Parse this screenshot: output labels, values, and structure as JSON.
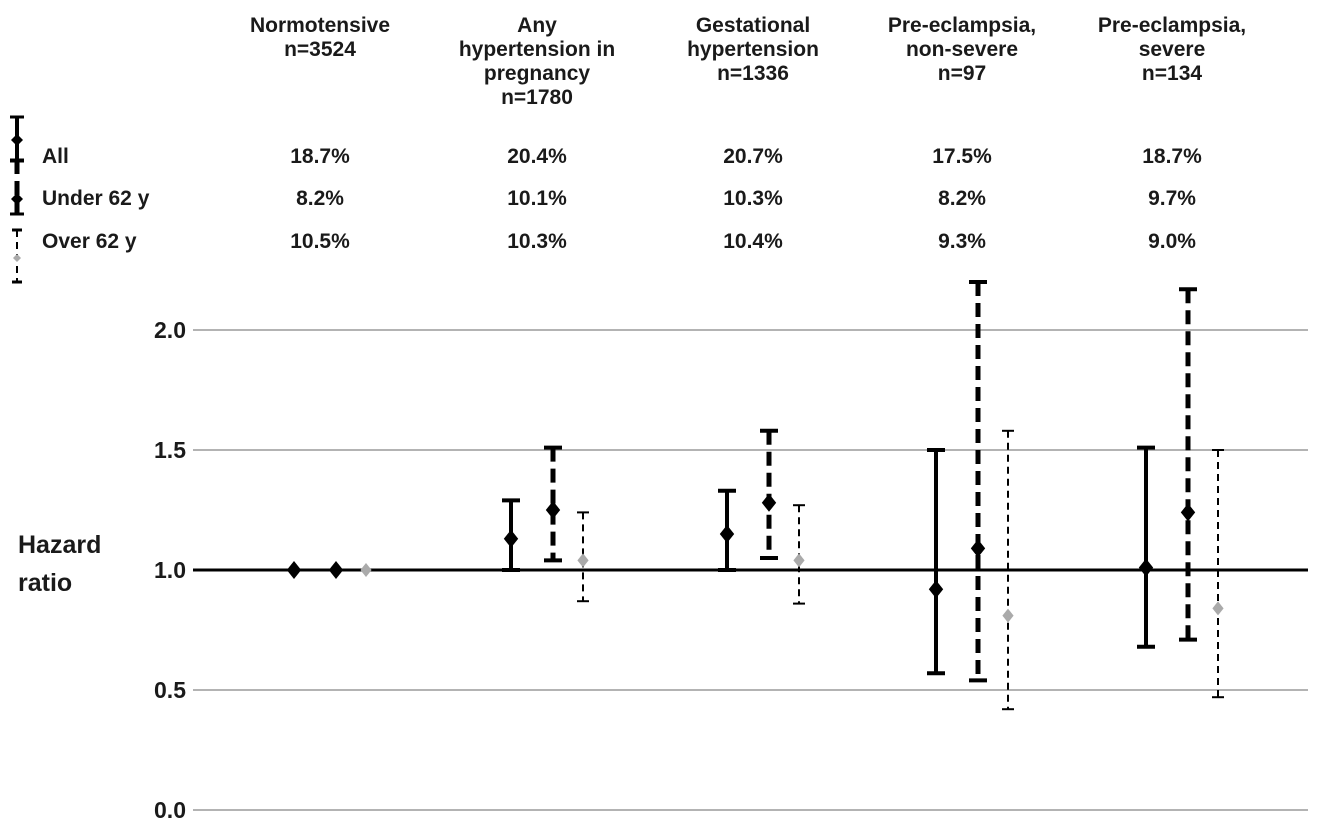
{
  "chart_data": {
    "type": "scatter",
    "title": "",
    "ylabel": [
      "Hazard",
      "ratio"
    ],
    "ylim": [
      0.0,
      2.0
    ],
    "yticks": [
      "0.0",
      "0.5",
      "1.0",
      "1.5",
      "2.0"
    ],
    "reference_line": 1.0,
    "grid": true,
    "legend_placement": "top-left",
    "groups": [
      {
        "label": [
          "Normotensive",
          "n=3524"
        ],
        "pct": [
          "18.7%",
          "8.2%",
          "10.5%"
        ]
      },
      {
        "label": [
          "Any",
          "hypertension in",
          "pregnancy",
          "n=1780"
        ],
        "pct": [
          "20.4%",
          "10.1%",
          "10.3%"
        ]
      },
      {
        "label": [
          "Gestational",
          "hypertension",
          "n=1336"
        ],
        "pct": [
          "20.7%",
          "10.3%",
          "10.4%"
        ]
      },
      {
        "label": [
          "Pre-eclampsia,",
          "non-severe",
          "n=97"
        ],
        "pct": [
          "17.5%",
          "8.2%",
          "9.3%"
        ]
      },
      {
        "label": [
          "Pre-eclampsia,",
          "severe",
          "n=134"
        ],
        "pct": [
          "18.7%",
          "9.7%",
          "9.0%"
        ]
      }
    ],
    "series": [
      {
        "name": "All",
        "style": "solid",
        "marker_color": "#000000",
        "hr": [
          1.0,
          1.13,
          1.15,
          0.92,
          1.01
        ],
        "lower": [
          null,
          1.0,
          1.0,
          0.57,
          0.68
        ],
        "upper": [
          null,
          1.29,
          1.33,
          1.5,
          1.51
        ]
      },
      {
        "name": "Under 62 y",
        "style": "dashed",
        "marker_color": "#000000",
        "hr": [
          1.0,
          1.25,
          1.28,
          1.09,
          1.24
        ],
        "lower": [
          null,
          1.04,
          1.05,
          0.54,
          0.71
        ],
        "upper": [
          null,
          1.51,
          1.58,
          2.2,
          2.17
        ]
      },
      {
        "name": "Over 62 y",
        "style": "thin-dashed",
        "marker_color": "#aaaaaa",
        "hr": [
          1.0,
          1.04,
          1.04,
          0.81,
          0.84
        ],
        "lower": [
          null,
          0.87,
          0.86,
          0.42,
          0.47
        ],
        "upper": [
          null,
          1.24,
          1.27,
          1.58,
          1.5
        ]
      }
    ]
  }
}
